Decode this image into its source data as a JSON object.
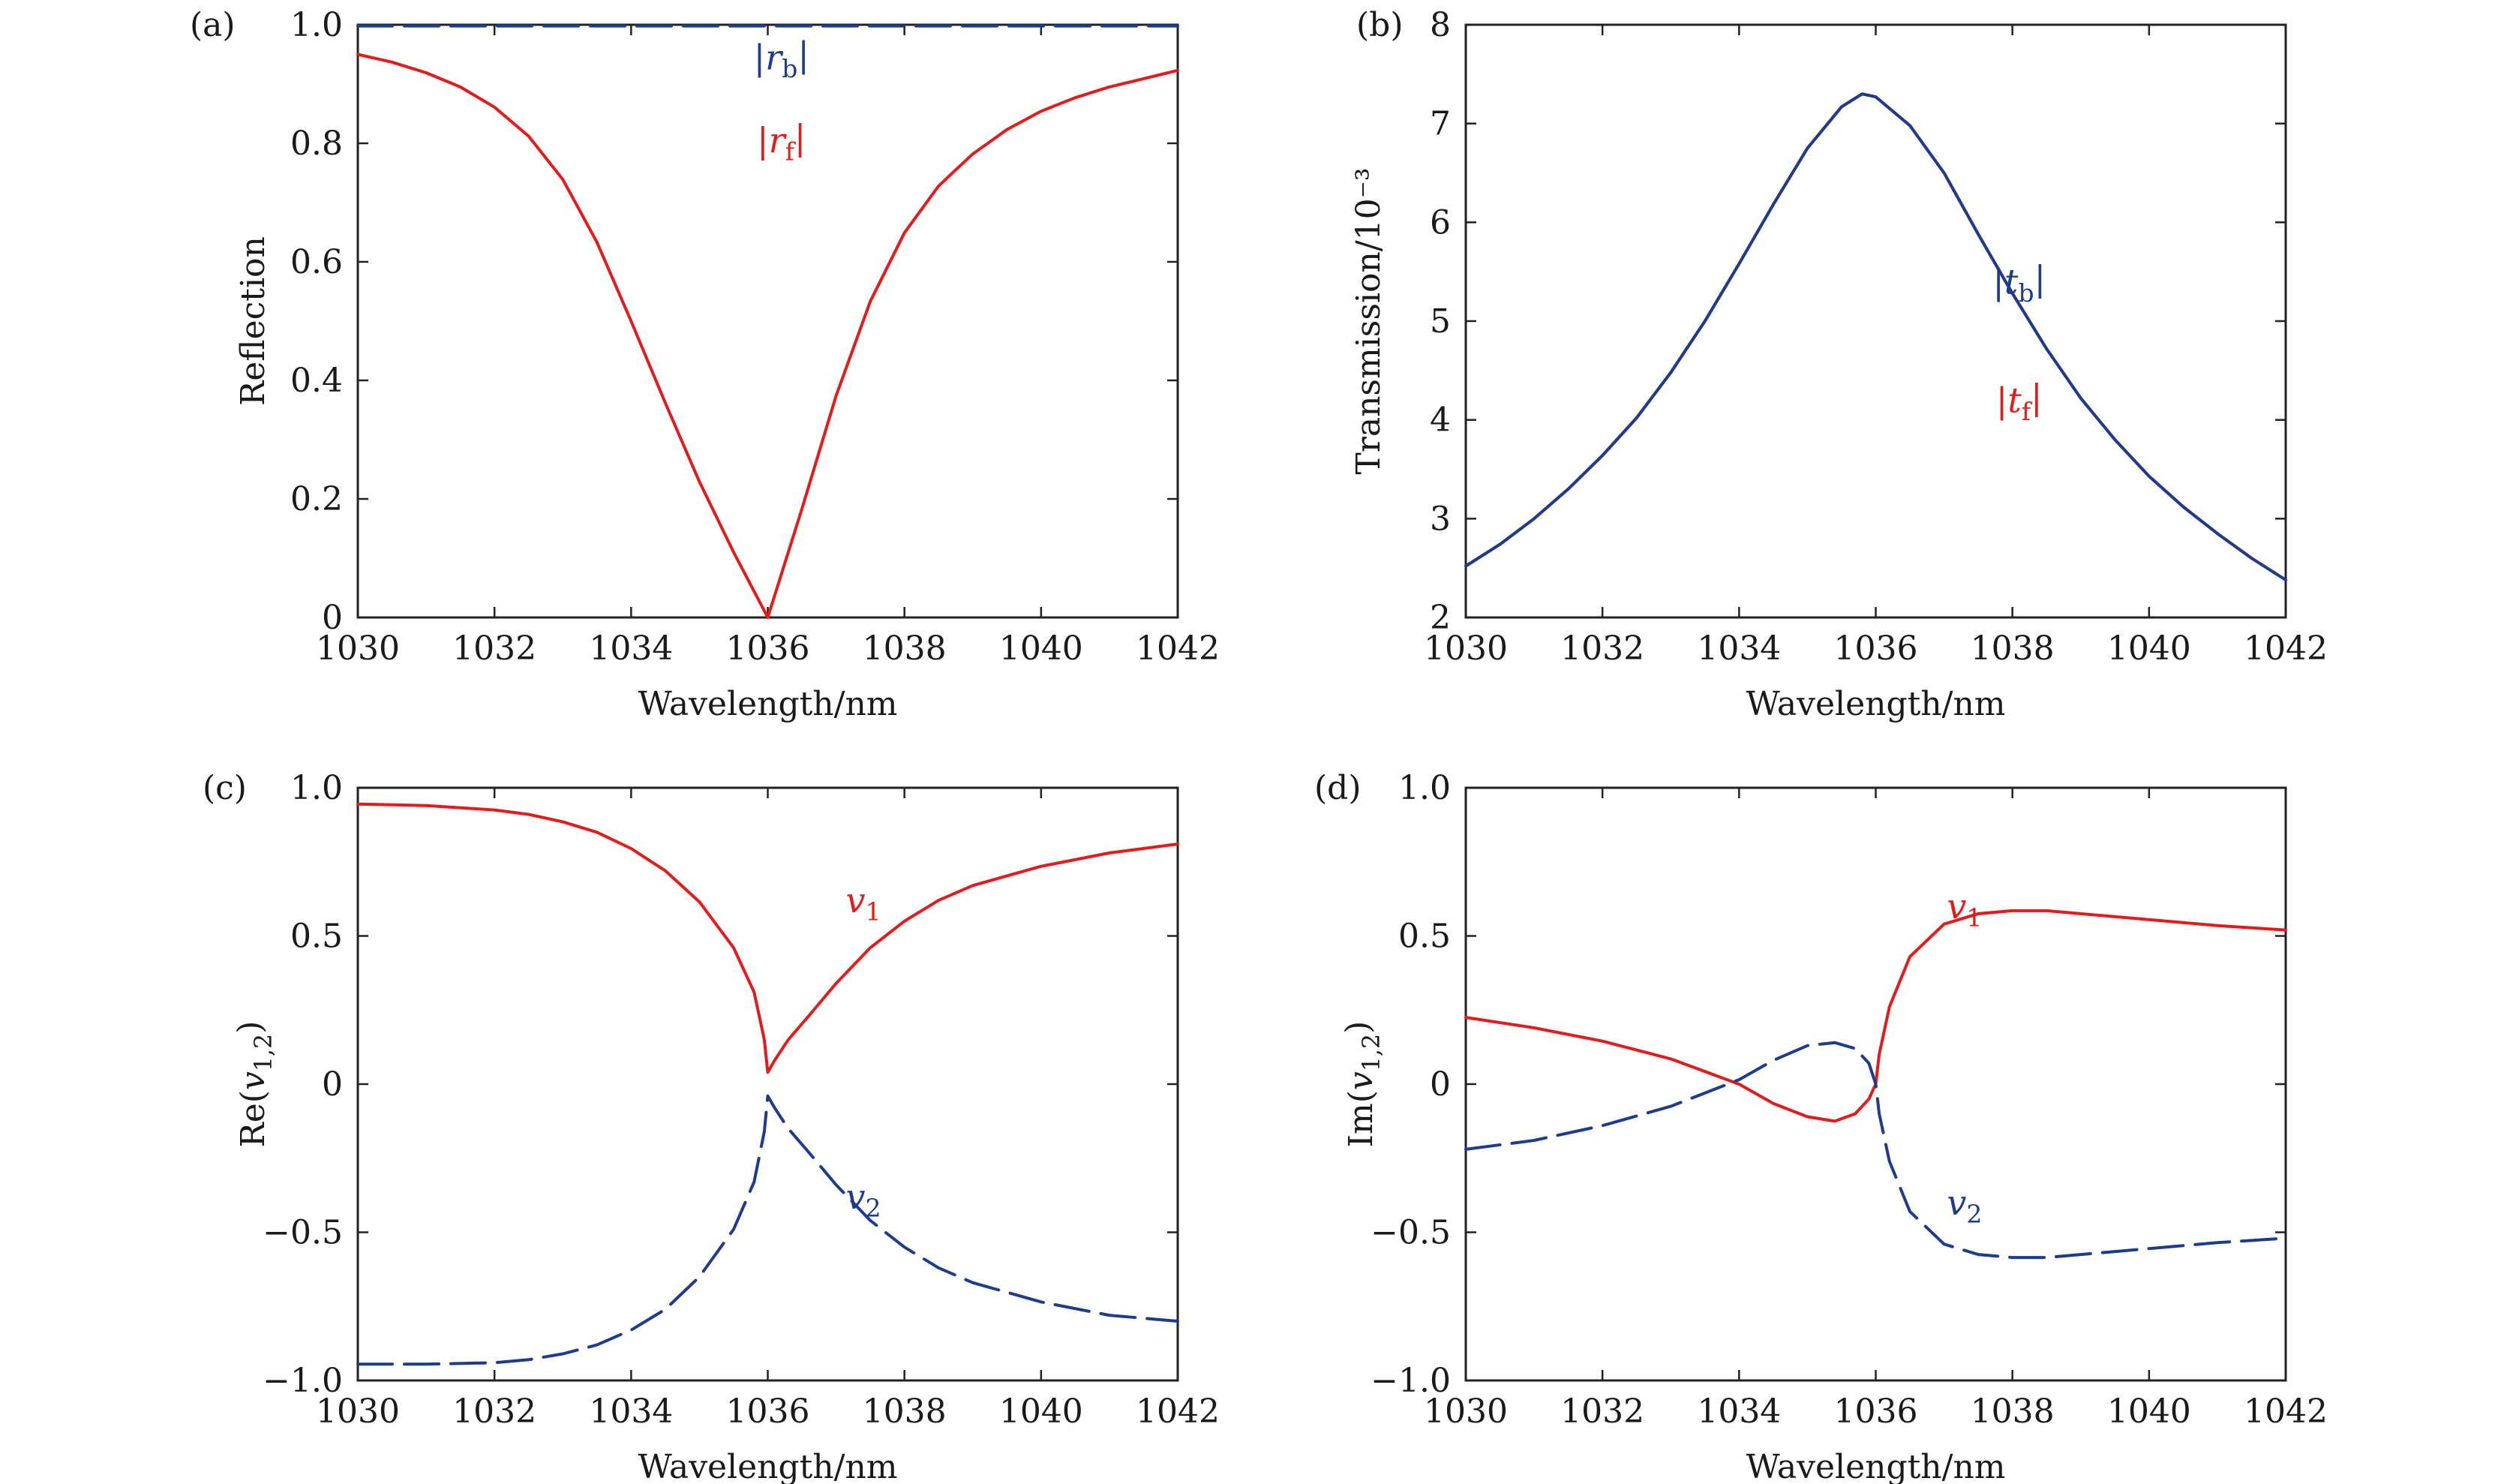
{
  "figure": {
    "colors": {
      "red": "#e41a1c",
      "blue": "#1f3b8c",
      "axis": "#222222"
    }
  },
  "chart_data": [
    {
      "type": "line",
      "panel": "(a)",
      "xlabel": "Wavelength/nm",
      "ylabel": "Reflection",
      "xlim": [
        1030,
        1042
      ],
      "ylim": [
        0,
        1.0
      ],
      "xticks": [
        1030,
        1032,
        1034,
        1036,
        1038,
        1040,
        1042
      ],
      "xtick_labels": [
        "1030",
        "1032",
        "1034",
        "1036",
        "1038",
        "1040",
        "1042"
      ],
      "yticks": [
        0,
        0.2,
        0.4,
        0.6,
        0.8,
        1.0
      ],
      "ytick_labels": [
        "0",
        "0.2",
        "0.4",
        "0.6",
        "0.8",
        "1.0"
      ],
      "series": [
        {
          "name": "|r_b|",
          "color": "#1f3b8c",
          "dash": "dashed",
          "label_parts": {
            "pre": "|",
            "main": "r",
            "sub": "b",
            "post": "|"
          },
          "label_at": [
            1036.2,
            0.945
          ],
          "x": [
            1030,
            1042
          ],
          "y": [
            0.998,
            0.998
          ]
        },
        {
          "name": "|r_f|",
          "color": "#e41a1c",
          "dash": "solid",
          "label_parts": {
            "pre": "|",
            "main": "r",
            "sub": "f",
            "post": "|"
          },
          "label_at": [
            1036.2,
            0.805
          ],
          "x": [
            1030,
            1030.5,
            1031,
            1031.5,
            1032,
            1032.5,
            1033,
            1033.5,
            1034,
            1034.5,
            1035,
            1035.5,
            1036,
            1036.5,
            1037,
            1037.5,
            1038,
            1038.5,
            1039,
            1039.5,
            1040,
            1040.5,
            1041,
            1041.5,
            1042
          ],
          "y": [
            0.95,
            0.937,
            0.919,
            0.895,
            0.861,
            0.812,
            0.739,
            0.633,
            0.5,
            0.362,
            0.229,
            0.11,
            0.0,
            0.183,
            0.374,
            0.533,
            0.649,
            0.728,
            0.782,
            0.823,
            0.854,
            0.877,
            0.895,
            0.909,
            0.923
          ]
        }
      ]
    },
    {
      "type": "line",
      "panel": "(b)",
      "xlabel": "Wavelength/nm",
      "ylabel": "Transmission/10⁻³",
      "xlim": [
        1030,
        1042
      ],
      "ylim": [
        2,
        8
      ],
      "xticks": [
        1030,
        1032,
        1034,
        1036,
        1038,
        1040,
        1042
      ],
      "xtick_labels": [
        "1030",
        "1032",
        "1034",
        "1036",
        "1038",
        "1040",
        "1042"
      ],
      "yticks": [
        2,
        3,
        4,
        5,
        6,
        7,
        8
      ],
      "ytick_labels": [
        "2",
        "3",
        "4",
        "5",
        "6",
        "7",
        "8"
      ],
      "series": [
        {
          "name": "|t_f|",
          "color": "#e41a1c",
          "dash": "solid",
          "label_parts": {
            "pre": "|",
            "main": "t",
            "sub": "f",
            "post": "|"
          },
          "label_at": [
            1038.1,
            4.2
          ],
          "x": [
            1030,
            1030.5,
            1031,
            1031.5,
            1032,
            1032.5,
            1033,
            1033.5,
            1034,
            1034.5,
            1035,
            1035.5,
            1035.8,
            1036,
            1036.5,
            1037,
            1037.5,
            1038,
            1038.5,
            1039,
            1039.5,
            1040,
            1040.5,
            1041,
            1041.5,
            1042
          ],
          "y": [
            2.52,
            2.74,
            3.0,
            3.3,
            3.64,
            4.02,
            4.48,
            5.0,
            5.58,
            6.18,
            6.75,
            7.17,
            7.3,
            7.27,
            6.98,
            6.5,
            5.88,
            5.28,
            4.72,
            4.22,
            3.8,
            3.43,
            3.12,
            2.85,
            2.6,
            2.38
          ]
        },
        {
          "name": "|t_b|",
          "color": "#1f3b8c",
          "dash": "solid",
          "label_parts": {
            "pre": "|",
            "main": "t",
            "sub": "b",
            "post": "|"
          },
          "label_at": [
            1038.1,
            5.4
          ],
          "x": [
            1030,
            1030.5,
            1031,
            1031.5,
            1032,
            1032.5,
            1033,
            1033.5,
            1034,
            1034.5,
            1035,
            1035.5,
            1035.8,
            1036,
            1036.5,
            1037,
            1037.5,
            1038,
            1038.5,
            1039,
            1039.5,
            1040,
            1040.5,
            1041,
            1041.5,
            1042
          ],
          "y": [
            2.52,
            2.74,
            3.0,
            3.3,
            3.64,
            4.02,
            4.48,
            5.0,
            5.58,
            6.18,
            6.75,
            7.17,
            7.3,
            7.27,
            6.98,
            6.5,
            5.88,
            5.28,
            4.72,
            4.22,
            3.8,
            3.43,
            3.12,
            2.85,
            2.6,
            2.38
          ]
        }
      ]
    },
    {
      "type": "line",
      "panel": "(c)",
      "xlabel": "Wavelength/nm",
      "ylabel": "Re(v₁,₂)",
      "ylabel_parts": {
        "pre": "Re(",
        "main": "v",
        "sub": "1,2",
        "post": ")"
      },
      "xlim": [
        1030,
        1042
      ],
      "ylim": [
        -1.0,
        1.0
      ],
      "xticks": [
        1030,
        1032,
        1034,
        1036,
        1038,
        1040,
        1042
      ],
      "xtick_labels": [
        "1030",
        "1032",
        "1034",
        "1036",
        "1038",
        "1040",
        "1042"
      ],
      "yticks": [
        -1.0,
        -0.5,
        0,
        0.5,
        1.0
      ],
      "ytick_labels": [
        "−1.0",
        "−0.5",
        "0",
        "0.5",
        "1.0"
      ],
      "series": [
        {
          "name": "v1",
          "color": "#e41a1c",
          "dash": "solid",
          "label_parts": {
            "pre": "",
            "main": "v",
            "sub": "1",
            "post": ""
          },
          "label_at": [
            1037.4,
            0.62
          ],
          "x": [
            1030,
            1031,
            1032,
            1032.5,
            1033,
            1033.5,
            1034,
            1034.5,
            1035,
            1035.5,
            1035.8,
            1035.95,
            1036,
            1036.1,
            1036.3,
            1036.6,
            1037,
            1037.5,
            1038,
            1038.5,
            1039,
            1040,
            1041,
            1042
          ],
          "y": [
            0.945,
            0.94,
            0.925,
            0.91,
            0.885,
            0.85,
            0.795,
            0.72,
            0.615,
            0.46,
            0.31,
            0.15,
            0.04,
            0.08,
            0.15,
            0.23,
            0.34,
            0.46,
            0.55,
            0.62,
            0.67,
            0.735,
            0.78,
            0.81
          ]
        },
        {
          "name": "v2",
          "color": "#1f3b8c",
          "dash": "dashed",
          "label_parts": {
            "pre": "",
            "main": "v",
            "sub": "2",
            "post": ""
          },
          "label_at": [
            1037.4,
            -0.38
          ],
          "x": [
            1030,
            1031,
            1032,
            1032.5,
            1033,
            1033.5,
            1034,
            1034.5,
            1035,
            1035.5,
            1035.8,
            1035.95,
            1036,
            1036.1,
            1036.3,
            1036.6,
            1037,
            1037.5,
            1038,
            1038.5,
            1039,
            1040,
            1041,
            1042
          ],
          "y": [
            -0.945,
            -0.945,
            -0.94,
            -0.93,
            -0.91,
            -0.88,
            -0.83,
            -0.76,
            -0.65,
            -0.49,
            -0.33,
            -0.16,
            -0.04,
            -0.08,
            -0.15,
            -0.23,
            -0.34,
            -0.46,
            -0.55,
            -0.62,
            -0.67,
            -0.735,
            -0.78,
            -0.8
          ]
        }
      ]
    },
    {
      "type": "line",
      "panel": "(d)",
      "xlabel": "Wavelength/nm",
      "ylabel": "Im(v₁,₂)",
      "ylabel_parts": {
        "pre": "Im(",
        "main": "v",
        "sub": "1,2",
        "post": ")"
      },
      "xlim": [
        1030,
        1042
      ],
      "ylim": [
        -1.0,
        1.0
      ],
      "xticks": [
        1030,
        1032,
        1034,
        1036,
        1038,
        1040,
        1042
      ],
      "xtick_labels": [
        "1030",
        "1032",
        "1034",
        "1036",
        "1038",
        "1040",
        "1042"
      ],
      "yticks": [
        -1.0,
        -0.5,
        0,
        0.5,
        1.0
      ],
      "ytick_labels": [
        "−1.0",
        "−0.5",
        "0",
        "0.5",
        "1.0"
      ],
      "series": [
        {
          "name": "v1",
          "color": "#e41a1c",
          "dash": "solid",
          "label_parts": {
            "pre": "",
            "main": "v",
            "sub": "1",
            "post": ""
          },
          "label_at": [
            1037.3,
            0.6
          ],
          "x": [
            1030,
            1031,
            1032,
            1033,
            1034,
            1034.5,
            1035,
            1035.4,
            1035.7,
            1035.9,
            1036,
            1036.05,
            1036.2,
            1036.5,
            1037,
            1037.5,
            1038,
            1038.5,
            1039,
            1040,
            1041,
            1042
          ],
          "y": [
            0.225,
            0.19,
            0.145,
            0.085,
            0.0,
            -0.065,
            -0.11,
            -0.125,
            -0.1,
            -0.05,
            0.0,
            0.1,
            0.26,
            0.43,
            0.54,
            0.575,
            0.585,
            0.585,
            0.575,
            0.555,
            0.535,
            0.52
          ]
        },
        {
          "name": "v2",
          "color": "#1f3b8c",
          "dash": "dashed",
          "label_parts": {
            "pre": "",
            "main": "v",
            "sub": "2",
            "post": ""
          },
          "label_at": [
            1037.3,
            -0.4
          ],
          "x": [
            1030,
            1031,
            1032,
            1033,
            1034,
            1034.5,
            1035,
            1035.4,
            1035.7,
            1035.9,
            1036,
            1036.05,
            1036.2,
            1036.5,
            1037,
            1037.5,
            1038,
            1038.5,
            1039,
            1040,
            1041,
            1042
          ],
          "y": [
            -0.22,
            -0.19,
            -0.14,
            -0.075,
            0.015,
            0.08,
            0.13,
            0.14,
            0.12,
            0.07,
            0.0,
            -0.1,
            -0.26,
            -0.43,
            -0.54,
            -0.575,
            -0.585,
            -0.585,
            -0.575,
            -0.555,
            -0.535,
            -0.52
          ]
        }
      ]
    }
  ]
}
